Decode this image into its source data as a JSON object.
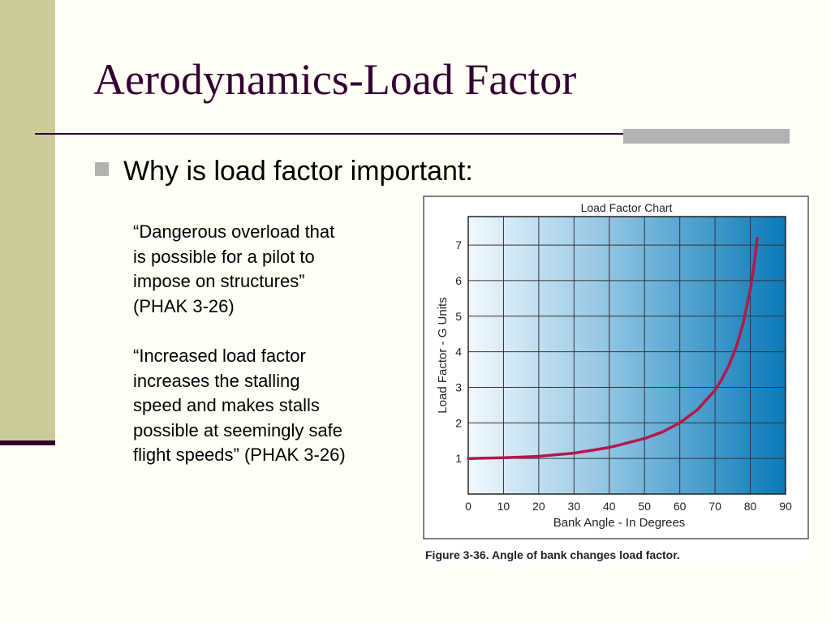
{
  "slide": {
    "title": "Aerodynamics-Load Factor",
    "bullet": "Why is load factor important:",
    "quote_1": {
      "lines": [
        "“Dangerous overload that",
        "is possible for a pilot to",
        "impose on structures”",
        "(PHAK 3-26)"
      ]
    },
    "quote_2": {
      "lines": [
        "“Increased load factor",
        "increases the stalling",
        "speed and makes stalls",
        "possible at seemingly safe",
        "flight speeds” (PHAK 3-26)"
      ]
    },
    "figure_caption": "Figure 3-36. Angle of bank changes load factor."
  },
  "colors": {
    "accent_band": "#cccc99",
    "title_color": "#330033",
    "rule_gray": "#b2b2b2",
    "curve": "#b5174b"
  },
  "chart_data": {
    "type": "line",
    "title": "Load Factor Chart",
    "xlabel": "Bank Angle - In Degrees",
    "ylabel": "Load Factor - G Units",
    "xlim": [
      0,
      90
    ],
    "ylim": [
      0,
      7.8
    ],
    "x_ticks": [
      0,
      10,
      20,
      30,
      40,
      50,
      60,
      70,
      80,
      90
    ],
    "y_ticks": [
      1,
      2,
      3,
      4,
      5,
      6,
      7
    ],
    "grid": true,
    "series": [
      {
        "x": [
          0,
          10,
          20,
          30,
          40,
          50,
          55,
          60,
          65,
          70,
          72,
          74,
          76,
          78,
          80,
          81,
          82
        ],
        "values": [
          1.0,
          1.02,
          1.06,
          1.15,
          1.31,
          1.56,
          1.74,
          2.0,
          2.37,
          2.92,
          3.24,
          3.63,
          4.13,
          4.81,
          5.76,
          6.39,
          7.19
        ]
      }
    ]
  }
}
